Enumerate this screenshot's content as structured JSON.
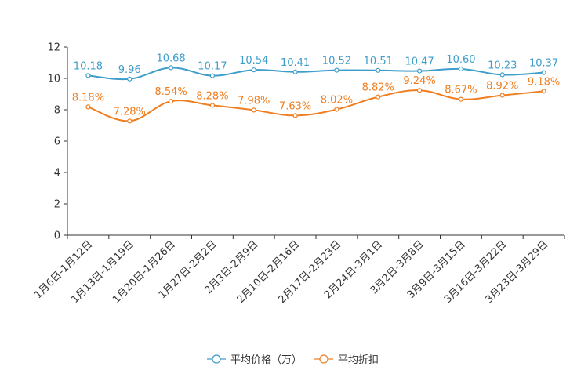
{
  "chart_data": {
    "type": "line",
    "title": "",
    "xlabel": "",
    "ylabel": "",
    "ylim": [
      0,
      12
    ],
    "yticks": [
      0,
      2,
      4,
      6,
      8,
      10,
      12
    ],
    "categories": [
      "1月6日-1月12日",
      "1月13日-1月19日",
      "1月20日-1月26日",
      "1月27日-2月2日",
      "2月3日-2月9日",
      "2月10日-2月16日",
      "2月17日-2月23日",
      "2月24日-3月1日",
      "3月2日-3月8日",
      "3月9日-3月15日",
      "3月16日-3月22日",
      "3月23日-3月29日"
    ],
    "series": [
      {
        "name": "平均价格（万）",
        "color": "#3e9dcb",
        "values": [
          10.18,
          9.96,
          10.68,
          10.17,
          10.54,
          10.41,
          10.52,
          10.51,
          10.47,
          10.6,
          10.23,
          10.37
        ],
        "labels": [
          "10.18",
          "9.96",
          "10.68",
          "10.17",
          "10.54",
          "10.41",
          "10.52",
          "10.51",
          "10.47",
          "10.60",
          "10.23",
          "10.37"
        ]
      },
      {
        "name": "平均折扣",
        "color": "#f07d1e",
        "values": [
          8.18,
          7.28,
          8.54,
          8.28,
          7.98,
          7.63,
          8.02,
          8.82,
          9.24,
          8.67,
          8.92,
          9.18
        ],
        "labels": [
          "8.18%",
          "7.28%",
          "8.54%",
          "8.28%",
          "7.98%",
          "7.63%",
          "8.02%",
          "8.82%",
          "9.24%",
          "8.67%",
          "8.92%",
          "9.18%"
        ]
      }
    ],
    "legend_position": "bottom"
  }
}
